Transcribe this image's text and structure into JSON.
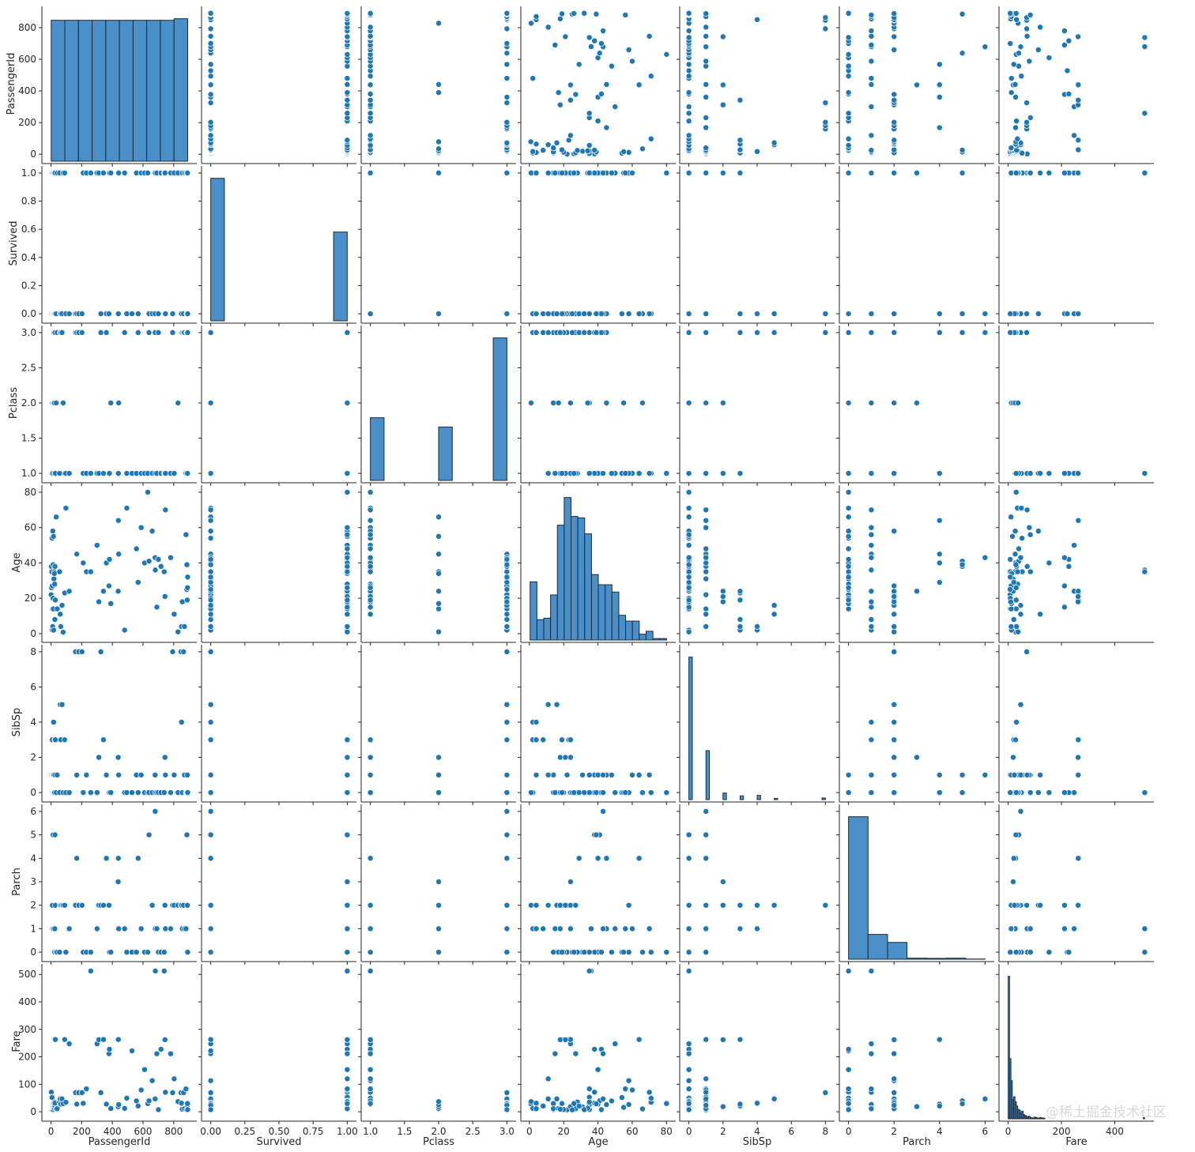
{
  "chart_data": {
    "type": "scatter",
    "kind": "pairplot",
    "variables": [
      {
        "name": "PassengerId",
        "range": [
          -44,
          935
        ],
        "ticks": [
          0,
          200,
          400,
          600,
          800
        ],
        "tick_labels": [
          "0",
          "200",
          "400",
          "600",
          "800"
        ]
      },
      {
        "name": "Survived",
        "range": [
          -0.05,
          1.05
        ],
        "ticks": [
          0,
          0.25,
          0.5,
          0.75,
          1
        ],
        "tick_labels": [
          "0.00",
          "0.25",
          "0.50",
          "0.75",
          "1.00"
        ],
        "y_ticks": [
          0,
          0.2,
          0.4,
          0.6,
          0.8,
          1.0
        ],
        "y_tick_labels": [
          "0.0",
          "0.2",
          "0.4",
          "0.6",
          "0.8",
          "1.0"
        ]
      },
      {
        "name": "Pclass",
        "range": [
          0.9,
          3.1
        ],
        "ticks": [
          1,
          1.5,
          2,
          2.5,
          3
        ],
        "tick_labels": [
          "1.0",
          "1.5",
          "2.0",
          "2.5",
          "3.0"
        ]
      },
      {
        "name": "Age",
        "range": [
          -3.6,
          84
        ],
        "ticks": [
          0,
          20,
          40,
          60,
          80
        ],
        "tick_labels": [
          "0",
          "20",
          "40",
          "60",
          "80"
        ]
      },
      {
        "name": "SibSp",
        "range": [
          -0.4,
          8.4
        ],
        "ticks": [
          0,
          2,
          4,
          6,
          8
        ],
        "tick_labels": [
          "0",
          "2",
          "4",
          "6",
          "8"
        ]
      },
      {
        "name": "Parch",
        "range": [
          -0.3,
          6.3
        ],
        "ticks": [
          0,
          1,
          2,
          3,
          4,
          5,
          6
        ],
        "tick_labels": [
          "0",
          "1",
          "2",
          "3",
          "4",
          "5",
          "6"
        ],
        "x_ticks": [
          0,
          2,
          4,
          6
        ],
        "x_tick_labels": [
          "0",
          "2",
          "4",
          "6"
        ]
      },
      {
        "name": "Fare",
        "range": [
          -25.6,
          538
        ],
        "ticks": [
          0,
          100,
          200,
          300,
          400,
          500
        ],
        "tick_labels": [
          "0",
          "100",
          "200",
          "300",
          "400",
          "500"
        ],
        "x_ticks": [
          0,
          200,
          400
        ],
        "x_tick_labels": [
          "0",
          "200",
          "400"
        ]
      }
    ],
    "histograms": [
      {
        "variable": "PassengerId",
        "bin_start": 1,
        "bin_width": 89,
        "counts": [
          89,
          89,
          89,
          89,
          89,
          89,
          89,
          89,
          89,
          90
        ]
      },
      {
        "variable": "Survived",
        "bin_start": 0,
        "bin_width": 0.1,
        "counts": [
          549,
          0,
          0,
          0,
          0,
          0,
          0,
          0,
          0,
          342
        ]
      },
      {
        "variable": "Pclass",
        "bin_start": 1,
        "bin_width": 0.2,
        "counts": [
          216,
          0,
          0,
          0,
          0,
          184,
          0,
          0,
          0,
          491
        ]
      },
      {
        "variable": "Age",
        "bin_start": 0.42,
        "bin_width": 3.98,
        "counts": [
          40,
          14,
          15,
          31,
          79,
          98,
          85,
          84,
          73,
          45,
          38,
          38,
          33,
          17,
          13,
          13,
          4,
          6,
          1,
          1
        ]
      },
      {
        "variable": "SibSp",
        "bin_start": 0,
        "bin_width": 0.2,
        "counts": [
          608,
          0,
          0,
          0,
          0,
          209,
          0,
          0,
          0,
          0,
          28,
          0,
          0,
          0,
          0,
          16,
          0,
          0,
          0,
          0,
          18,
          0,
          0,
          0,
          0,
          5,
          0,
          0,
          0,
          0,
          0,
          0,
          0,
          0,
          0,
          0,
          0,
          0,
          0,
          7
        ]
      },
      {
        "variable": "Parch",
        "bin_start": 0,
        "bin_width": 0.857,
        "counts": [
          678,
          118,
          80,
          5,
          4,
          5,
          1
        ]
      },
      {
        "variable": "Fare",
        "bin_start": 0,
        "bin_width": 5.12,
        "counts": [
          336,
          142,
          90,
          45,
          52,
          40,
          30,
          22,
          20,
          14,
          18,
          10,
          8,
          6,
          4,
          6,
          3,
          2,
          2,
          4,
          3,
          2,
          1,
          3,
          2,
          2,
          1,
          0,
          0,
          0,
          0,
          0,
          0,
          0,
          0,
          0,
          0,
          0,
          0,
          0,
          0,
          0,
          0,
          0,
          0,
          0,
          0,
          0,
          0,
          0,
          0,
          0,
          0,
          0,
          0,
          0,
          0,
          0,
          0,
          0,
          0,
          0,
          0,
          0,
          0,
          0,
          0,
          0,
          0,
          0,
          0,
          0,
          0,
          0,
          0,
          0,
          0,
          0,
          0,
          0,
          0,
          0,
          0,
          0,
          0,
          0,
          0,
          0,
          0,
          0,
          0,
          0,
          0,
          0,
          0,
          0,
          0,
          0,
          0,
          3
        ]
      }
    ],
    "rows_columns": [
      "PassengerId",
      "Survived",
      "Pclass",
      "Age",
      "SibSp",
      "Parch",
      "Fare"
    ],
    "rows": [
      [
        1,
        0,
        3,
        22,
        1,
        0,
        7.25
      ],
      [
        2,
        1,
        1,
        38,
        1,
        0,
        71.28
      ],
      [
        3,
        1,
        3,
        26,
        0,
        0,
        7.93
      ],
      [
        4,
        1,
        1,
        35,
        1,
        0,
        53.1
      ],
      [
        5,
        0,
        3,
        35,
        0,
        0,
        8.05
      ],
      [
        7,
        0,
        1,
        54,
        0,
        0,
        51.86
      ],
      [
        8,
        0,
        3,
        2,
        3,
        1,
        21.08
      ],
      [
        9,
        1,
        3,
        27,
        0,
        2,
        11.13
      ],
      [
        10,
        1,
        2,
        14,
        1,
        0,
        30.07
      ],
      [
        11,
        1,
        3,
        4,
        1,
        1,
        16.7
      ],
      [
        12,
        1,
        1,
        58,
        0,
        0,
        26.55
      ],
      [
        13,
        0,
        3,
        20,
        0,
        0,
        8.05
      ],
      [
        14,
        0,
        3,
        39,
        1,
        5,
        31.28
      ],
      [
        15,
        0,
        3,
        14,
        0,
        0,
        7.85
      ],
      [
        16,
        1,
        2,
        55,
        0,
        0,
        16
      ],
      [
        17,
        0,
        3,
        2,
        4,
        1,
        29.13
      ],
      [
        19,
        0,
        3,
        31,
        1,
        0,
        18
      ],
      [
        21,
        0,
        2,
        35,
        0,
        0,
        26
      ],
      [
        22,
        1,
        2,
        34,
        0,
        0,
        13
      ],
      [
        24,
        1,
        1,
        28,
        0,
        0,
        35.5
      ],
      [
        25,
        0,
        3,
        8,
        3,
        1,
        21.08
      ],
      [
        26,
        1,
        3,
        38,
        1,
        5,
        31.39
      ],
      [
        28,
        0,
        1,
        19,
        3,
        2,
        263
      ],
      [
        34,
        0,
        2,
        66,
        0,
        0,
        10.5
      ],
      [
        40,
        1,
        3,
        14,
        1,
        0,
        11.24
      ],
      [
        56,
        1,
        1,
        35,
        0,
        0,
        35.5
      ],
      [
        60,
        0,
        3,
        11,
        5,
        2,
        46.9
      ],
      [
        64,
        0,
        3,
        4,
        3,
        2,
        27.9
      ],
      [
        72,
        0,
        3,
        16,
        5,
        2,
        46.9
      ],
      [
        79,
        1,
        2,
        0.83,
        0,
        2,
        29
      ],
      [
        89,
        1,
        1,
        23,
        3,
        2,
        263
      ],
      [
        97,
        0,
        1,
        71,
        0,
        0,
        34.65
      ],
      [
        119,
        0,
        1,
        24,
        0,
        1,
        247.52
      ],
      [
        160,
        0,
        3,
        null,
        8,
        2,
        69.55
      ],
      [
        168,
        0,
        3,
        45,
        1,
        4,
        27.9
      ],
      [
        181,
        0,
        3,
        null,
        8,
        2,
        69.55
      ],
      [
        202,
        0,
        3,
        null,
        8,
        2,
        69.55
      ],
      [
        210,
        1,
        1,
        40,
        0,
        0,
        31
      ],
      [
        231,
        1,
        1,
        35,
        1,
        0,
        83.47
      ],
      [
        259,
        1,
        1,
        35,
        0,
        0,
        512.33
      ],
      [
        300,
        1,
        1,
        50,
        0,
        1,
        247.52
      ],
      [
        312,
        1,
        1,
        18,
        2,
        2,
        262.38
      ],
      [
        325,
        0,
        3,
        null,
        8,
        2,
        69.55
      ],
      [
        342,
        1,
        1,
        24,
        3,
        2,
        263
      ],
      [
        361,
        0,
        3,
        40,
        1,
        4,
        27.9
      ],
      [
        378,
        0,
        1,
        27,
        0,
        2,
        211.5
      ],
      [
        381,
        1,
        1,
        42,
        0,
        0,
        227.52
      ],
      [
        390,
        1,
        2,
        17,
        0,
        0,
        12
      ],
      [
        438,
        1,
        2,
        24,
        2,
        3,
        18.75
      ],
      [
        439,
        0,
        1,
        64,
        1,
        4,
        263
      ],
      [
        441,
        1,
        2,
        45,
        1,
        1,
        26.25
      ],
      [
        480,
        1,
        3,
        2,
        0,
        1,
        12.29
      ],
      [
        494,
        0,
        1,
        71,
        0,
        0,
        49.5
      ],
      [
        528,
        0,
        1,
        null,
        0,
        0,
        221.78
      ],
      [
        557,
        1,
        1,
        48,
        1,
        0,
        39.6
      ],
      [
        568,
        0,
        3,
        29,
        0,
        4,
        21.08
      ],
      [
        588,
        1,
        1,
        60,
        1,
        1,
        79.2
      ],
      [
        610,
        1,
        1,
        40,
        0,
        0,
        153.46
      ],
      [
        631,
        1,
        1,
        80,
        0,
        0,
        30
      ],
      [
        639,
        0,
        3,
        41,
        0,
        5,
        39.69
      ],
      [
        660,
        0,
        1,
        58,
        0,
        2,
        113.28
      ],
      [
        679,
        0,
        3,
        43,
        1,
        6,
        46.9
      ],
      [
        680,
        1,
        1,
        36,
        0,
        1,
        512.33
      ],
      [
        690,
        1,
        1,
        15,
        0,
        1,
        211.34
      ],
      [
        700,
        0,
        3,
        42,
        0,
        0,
        7.65
      ],
      [
        717,
        1,
        1,
        38,
        0,
        0,
        227.53
      ],
      [
        738,
        1,
        1,
        35,
        0,
        0,
        512.33
      ],
      [
        743,
        1,
        1,
        21,
        2,
        2,
        262.38
      ],
      [
        746,
        0,
        1,
        70,
        1,
        1,
        71
      ],
      [
        780,
        1,
        1,
        43,
        0,
        1,
        211.34
      ],
      [
        793,
        0,
        3,
        null,
        8,
        2,
        69.55
      ],
      [
        803,
        1,
        1,
        11,
        1,
        2,
        120
      ],
      [
        828,
        1,
        2,
        1,
        0,
        2,
        37
      ],
      [
        847,
        0,
        3,
        null,
        8,
        2,
        69.55
      ],
      [
        851,
        0,
        3,
        4,
        4,
        2,
        31.27
      ],
      [
        856,
        1,
        3,
        18,
        0,
        1,
        9.35
      ],
      [
        864,
        0,
        3,
        null,
        8,
        2,
        69.55
      ],
      [
        870,
        1,
        3,
        4,
        1,
        1,
        11.13
      ],
      [
        880,
        1,
        1,
        56,
        0,
        1,
        83.16
      ],
      [
        885,
        0,
        3,
        25,
        0,
        0,
        7.05
      ],
      [
        886,
        0,
        3,
        39,
        0,
        5,
        29.13
      ],
      [
        888,
        1,
        1,
        19,
        0,
        0,
        30
      ],
      [
        889,
        0,
        3,
        null,
        1,
        2,
        23.45
      ],
      [
        890,
        1,
        1,
        26,
        0,
        0,
        30
      ],
      [
        891,
        0,
        3,
        32,
        0,
        0,
        7.75
      ]
    ]
  },
  "watermark": "@稀土掘金技术社区",
  "colors": {
    "point": "#1f77b4",
    "bar": "#4a8fc8",
    "bar_edge": "#1a2a3a",
    "axis": "#262626"
  }
}
